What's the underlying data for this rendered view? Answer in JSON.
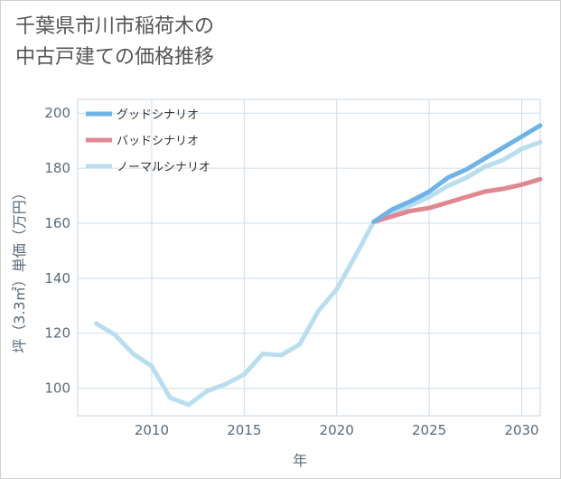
{
  "title_line1": "千葉県市川市稲荷木の",
  "title_line2": "中古戸建ての価格推移",
  "chart_data": {
    "type": "line",
    "xlabel": "年",
    "ylabel": "坪（3.3㎡）単価（万円）",
    "xlim": [
      2006,
      2031
    ],
    "ylim": [
      90,
      205
    ],
    "x_ticks": [
      2010,
      2015,
      2020,
      2025,
      2030
    ],
    "y_ticks": [
      100,
      120,
      140,
      160,
      180,
      200
    ],
    "grid": true,
    "legend_position": "top-left",
    "series": [
      {
        "name": "グッドシナリオ",
        "color": "#6cb4e8",
        "x": [
          2022,
          2023,
          2024,
          2025,
          2026,
          2027,
          2028,
          2029,
          2030,
          2031
        ],
        "values": [
          160.5,
          165,
          168,
          171.5,
          176.5,
          179.5,
          183.5,
          187.5,
          191.5,
          195.5
        ]
      },
      {
        "name": "バッドシナリオ",
        "color": "#e08890",
        "x": [
          2022,
          2023,
          2024,
          2025,
          2026,
          2027,
          2028,
          2029,
          2030,
          2031
        ],
        "values": [
          160.5,
          162.5,
          164.5,
          165.5,
          167.5,
          169.5,
          171.5,
          172.5,
          174,
          176
        ]
      },
      {
        "name": "ノーマルシナリオ",
        "color": "#b9def0",
        "x": [
          2007,
          2008,
          2009,
          2010,
          2011,
          2012,
          2013,
          2014,
          2015,
          2016,
          2017,
          2018,
          2019,
          2020,
          2021,
          2022,
          2023,
          2024,
          2025,
          2026,
          2027,
          2028,
          2029,
          2030,
          2031
        ],
        "values": [
          123.5,
          119.5,
          112.5,
          108,
          96.5,
          94,
          99,
          101.5,
          105,
          112.5,
          112,
          116,
          128,
          136,
          148,
          160.5,
          163.5,
          166.5,
          169.5,
          173.5,
          176.5,
          180.5,
          183,
          187,
          189.5
        ]
      }
    ]
  }
}
